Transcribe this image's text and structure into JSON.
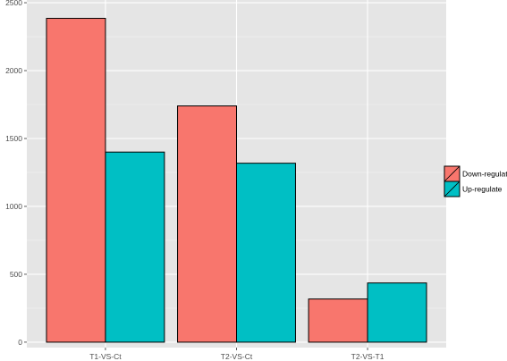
{
  "chart_data": {
    "type": "bar",
    "categories": [
      "T1-VS-Ct",
      "T2-VS-Ct",
      "T2-VS-T1"
    ],
    "series": [
      {
        "name": "Down-regulate",
        "values": [
          2385,
          1740,
          318
        ],
        "color": "#F8766D"
      },
      {
        "name": "Up-regulate",
        "values": [
          1400,
          1318,
          436
        ],
        "color": "#00BFC4"
      }
    ],
    "title": "",
    "xlabel": "",
    "ylabel": "",
    "ylim": [
      -40,
      2520
    ],
    "yticks": [
      0,
      500,
      1000,
      1500,
      2000,
      2500
    ],
    "ytick_labels": [
      "0",
      "500",
      "1000",
      "1500",
      "2000",
      "2500"
    ],
    "grid": true,
    "panel_background": "#E5E5E5",
    "legend_position": "right"
  }
}
